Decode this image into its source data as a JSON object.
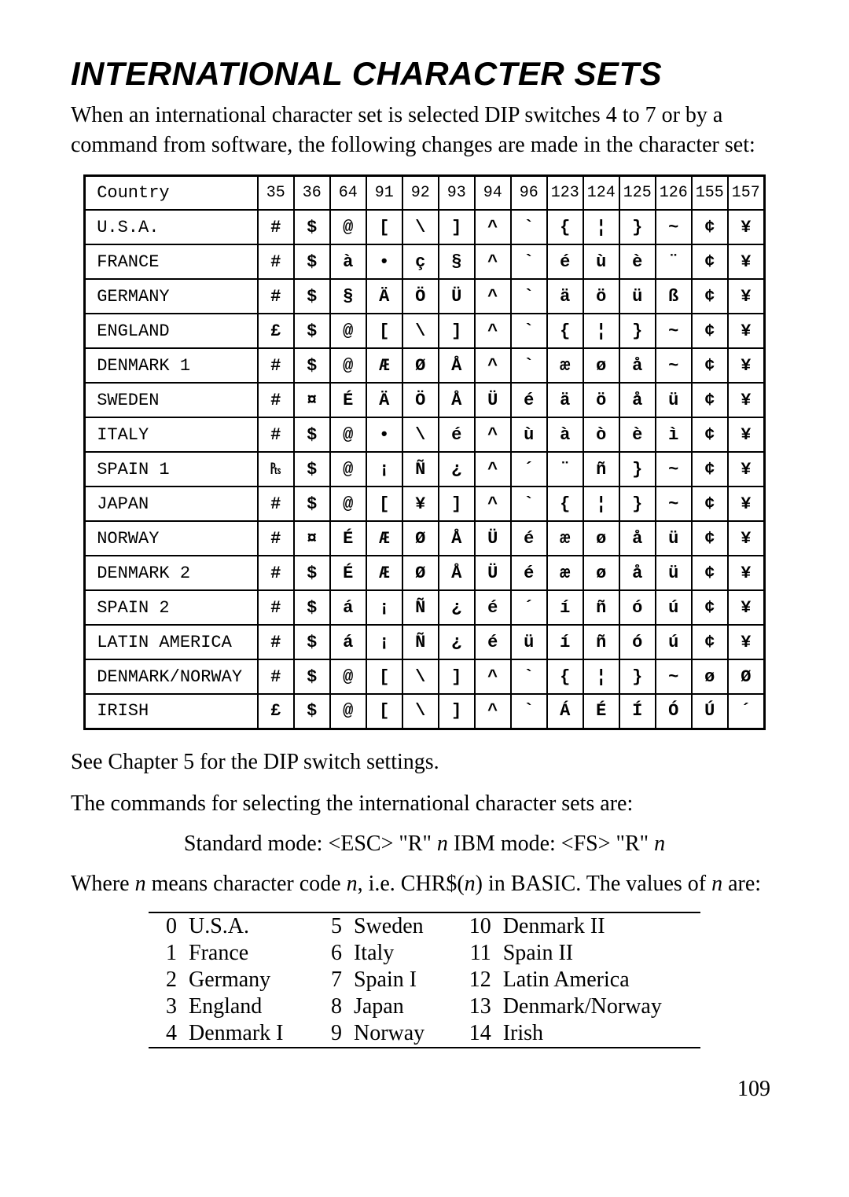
{
  "title": "INTERNATIONAL CHARACTER SETS",
  "intro": "When an international character set is selected DIP switches 4 to 7 or by a command from software, the following changes are made in the character set:",
  "char_table": {
    "header": [
      "Country",
      "35",
      "36",
      "64",
      "91",
      "92",
      "93",
      "94",
      "96",
      "123",
      "124",
      "125",
      "126",
      "155",
      "157"
    ],
    "rows": [
      [
        "U.S.A.",
        "#",
        "$",
        "@",
        "[",
        "\\",
        "]",
        "^",
        "`",
        "{",
        "¦",
        "}",
        "~",
        "¢",
        "¥"
      ],
      [
        "FRANCE",
        "#",
        "$",
        "à",
        "•",
        "ç",
        "§",
        "^",
        "`",
        "é",
        "ù",
        "è",
        "¨",
        "¢",
        "¥"
      ],
      [
        "GERMANY",
        "#",
        "$",
        "§",
        "Ä",
        "Ö",
        "Ü",
        "^",
        "`",
        "ä",
        "ö",
        "ü",
        "ß",
        "¢",
        "¥"
      ],
      [
        "ENGLAND",
        "£",
        "$",
        "@",
        "[",
        "\\",
        "]",
        "^",
        "`",
        "{",
        "¦",
        "}",
        "~",
        "¢",
        "¥"
      ],
      [
        "DENMARK 1",
        "#",
        "$",
        "@",
        "Æ",
        "Ø",
        "Å",
        "^",
        "`",
        "æ",
        "ø",
        "å",
        "~",
        "¢",
        "¥"
      ],
      [
        "SWEDEN",
        "#",
        "¤",
        "É",
        "Ä",
        "Ö",
        "Å",
        "Ü",
        "é",
        "ä",
        "ö",
        "å",
        "ü",
        "¢",
        "¥"
      ],
      [
        "ITALY",
        "#",
        "$",
        "@",
        "•",
        "\\",
        "é",
        "^",
        "ù",
        "à",
        "ò",
        "è",
        "ì",
        "¢",
        "¥"
      ],
      [
        "SPAIN 1",
        "₧",
        "$",
        "@",
        "¡",
        "Ñ",
        "¿",
        "^",
        "´",
        "¨",
        "ñ",
        "}",
        "~",
        "¢",
        "¥"
      ],
      [
        "JAPAN",
        "#",
        "$",
        "@",
        "[",
        "¥",
        "]",
        "^",
        "`",
        "{",
        "¦",
        "}",
        "~",
        "¢",
        "¥"
      ],
      [
        "NORWAY",
        "#",
        "¤",
        "É",
        "Æ",
        "Ø",
        "Å",
        "Ü",
        "é",
        "æ",
        "ø",
        "å",
        "ü",
        "¢",
        "¥"
      ],
      [
        "DENMARK 2",
        "#",
        "$",
        "É",
        "Æ",
        "Ø",
        "Å",
        "Ü",
        "é",
        "æ",
        "ø",
        "å",
        "ü",
        "¢",
        "¥"
      ],
      [
        "SPAIN 2",
        "#",
        "$",
        "á",
        "¡",
        "Ñ",
        "¿",
        "é",
        "´",
        "í",
        "ñ",
        "ó",
        "ú",
        "¢",
        "¥"
      ],
      [
        "LATIN AMERICA",
        "#",
        "$",
        "á",
        "¡",
        "Ñ",
        "¿",
        "é",
        "ü",
        "í",
        "ñ",
        "ó",
        "ú",
        "¢",
        "¥"
      ],
      [
        "DENMARK/NORWAY",
        "#",
        "$",
        "@",
        "[",
        "\\",
        "]",
        "^",
        "`",
        "{",
        "¦",
        "}",
        "~",
        "ø",
        "Ø"
      ],
      [
        "IRISH",
        "£",
        "$",
        "@",
        "[",
        "\\",
        "]",
        "^",
        "`",
        "Á",
        "É",
        "Í",
        "Ó",
        "Ú",
        "´"
      ]
    ],
    "small_country_rows": [
      12,
      13
    ]
  },
  "after_table_1": "See Chapter 5 for the DIP switch settings.",
  "after_table_2": "The commands for selecting the international character sets are:",
  "cmd": {
    "std_label": "Standard mode: <ESC> \"R\" ",
    "ibm_label": "   IBM mode: <FS> \"R\" ",
    "n": "n"
  },
  "where_pre": "Where ",
  "where_mid1": " means character code ",
  "where_mid2": ", i.e. CHR$(",
  "where_mid3": ") in BASIC. The values of ",
  "where_end": " are:",
  "codes": [
    [
      "0",
      "U.S.A.",
      "5",
      "Sweden",
      "10",
      "Denmark II"
    ],
    [
      "1",
      "France",
      "6",
      "Italy",
      "11",
      "Spain II"
    ],
    [
      "2",
      "Germany",
      "7",
      "Spain I",
      "12",
      "Latin America"
    ],
    [
      "3",
      "England",
      "8",
      "Japan",
      "13",
      "Denmark/Norway"
    ],
    [
      "4",
      "Denmark I",
      "9",
      "Norway",
      "14",
      "Irish"
    ]
  ],
  "page_number": "109"
}
